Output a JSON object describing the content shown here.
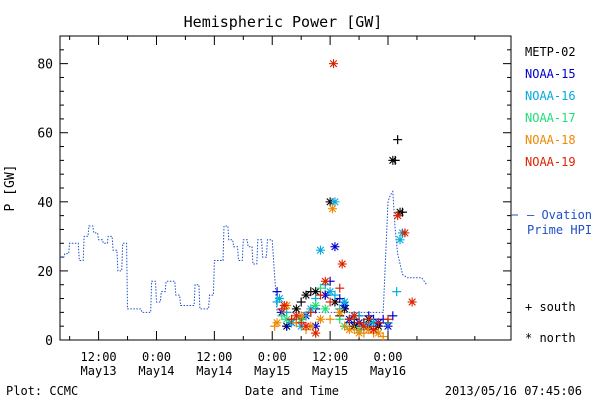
{
  "chart_data": {
    "type": "scatter",
    "title": "Hemispheric Power [GW]",
    "ylabel": "P [GW]",
    "xlabel": "Date and Time",
    "footer_left": "Plot: CCMC",
    "footer_right": "2013/05/16 07:45:06",
    "x_unit": "hours since 2013/05/13 00:00",
    "xlim": [
      4,
      97.5
    ],
    "ylim": [
      0,
      88
    ],
    "grid": false,
    "y_ticks": [
      0,
      20,
      40,
      60,
      80
    ],
    "x_ticks": [
      {
        "value": 12,
        "label": "12:00",
        "sublabel": "May13"
      },
      {
        "value": 24,
        "label": "0:00",
        "sublabel": "May14"
      },
      {
        "value": 36,
        "label": "12:00",
        "sublabel": "May14"
      },
      {
        "value": 48,
        "label": "0:00",
        "sublabel": "May15"
      },
      {
        "value": 60,
        "label": "12:00",
        "sublabel": "May15"
      },
      {
        "value": 72,
        "label": "0:00",
        "sublabel": "May16"
      }
    ],
    "legend_position": "right",
    "ovation": {
      "name": "Ovation Prime HPI",
      "name_lines": [
        "— Ovation",
        "Prime HPI"
      ],
      "color": "#1e50c8",
      "x": [
        4,
        4.8,
        5,
        5.8,
        6,
        6.8,
        7,
        7.8,
        8,
        8.8,
        9,
        9.8,
        10,
        10.8,
        11,
        11.8,
        12,
        12.8,
        13,
        13.8,
        14,
        14.8,
        15,
        15.8,
        16,
        16.8,
        17,
        17.8,
        18,
        18.8,
        19,
        19.8,
        20,
        20.8,
        21,
        21.8,
        22,
        22.8,
        23,
        23.8,
        24,
        24.8,
        25,
        25.8,
        26,
        26.8,
        27,
        27.8,
        28,
        28.8,
        29,
        29.8,
        30,
        30.8,
        31,
        31.8,
        32,
        32.8,
        33,
        33.8,
        34,
        34.8,
        35,
        35.8,
        36,
        36.8,
        37,
        37.8,
        38,
        38.8,
        39,
        39.8,
        40,
        40.8,
        41,
        41.8,
        42,
        42.8,
        43,
        43.8,
        44,
        44.8,
        45,
        45.8,
        46,
        46.8,
        47,
        48,
        49,
        50,
        51,
        52,
        53,
        54,
        55,
        56,
        57,
        58,
        59,
        60,
        61,
        62,
        63,
        64,
        65,
        66,
        67,
        68,
        69,
        70,
        71,
        72,
        72.5,
        73,
        73.5,
        74,
        74.5,
        75,
        76,
        77,
        78,
        79,
        80
      ],
      "y": [
        24,
        24,
        25,
        25,
        28,
        28,
        28,
        28,
        23,
        23,
        30,
        30,
        33,
        33,
        31,
        31,
        29,
        29,
        28,
        28,
        30,
        30,
        26,
        26,
        20,
        20,
        28,
        28,
        9,
        9,
        9,
        9,
        9,
        9,
        8,
        8,
        8,
        8,
        17,
        17,
        11,
        11,
        14,
        14,
        17,
        17,
        17,
        17,
        13,
        13,
        10,
        10,
        10,
        10,
        10,
        10,
        16,
        16,
        9,
        9,
        9,
        9,
        13,
        13,
        23,
        23,
        23,
        23,
        33,
        33,
        29,
        29,
        27,
        27,
        23,
        23,
        29,
        29,
        27,
        27,
        22,
        22,
        29,
        29,
        24,
        24,
        29,
        29,
        8,
        8,
        8,
        8,
        8,
        8,
        8,
        8,
        8,
        8,
        8,
        8,
        8,
        8,
        8,
        8,
        8,
        8,
        8,
        8,
        8,
        8,
        8,
        40,
        42,
        43,
        32,
        25,
        22,
        19,
        18,
        18,
        18,
        18,
        16
      ]
    },
    "series": [
      {
        "name": "METP-02",
        "color": "#000000",
        "south": [
          [
            52,
            6
          ],
          [
            54,
            11
          ],
          [
            56,
            14
          ],
          [
            59,
            13
          ],
          [
            62,
            7
          ],
          [
            65,
            6
          ],
          [
            67,
            5
          ],
          [
            72,
            5
          ],
          [
            73.5,
            52
          ],
          [
            74,
            58
          ],
          [
            75,
            37
          ]
        ],
        "north": [
          [
            51,
            4
          ],
          [
            53,
            9
          ],
          [
            55,
            13
          ],
          [
            57,
            14
          ],
          [
            60,
            40
          ],
          [
            61,
            11
          ],
          [
            63,
            9
          ],
          [
            65,
            4
          ],
          [
            68,
            6
          ],
          [
            70,
            4
          ],
          [
            73,
            52
          ],
          [
            74.5,
            37
          ]
        ]
      },
      {
        "name": "NOAA-15",
        "color": "#0000cc",
        "south": [
          [
            49,
            14
          ],
          [
            51,
            4
          ],
          [
            54,
            6
          ],
          [
            57,
            9
          ],
          [
            60,
            17
          ],
          [
            62,
            12
          ],
          [
            64,
            5
          ],
          [
            66,
            7
          ],
          [
            68,
            7
          ],
          [
            69,
            6
          ],
          [
            71,
            6
          ],
          [
            73,
            7
          ]
        ],
        "north": [
          [
            50,
            8
          ],
          [
            52,
            5
          ],
          [
            55,
            7
          ],
          [
            57,
            4
          ],
          [
            59,
            13
          ],
          [
            61,
            27
          ],
          [
            63,
            10
          ],
          [
            64,
            6
          ],
          [
            66,
            5
          ],
          [
            68,
            4
          ],
          [
            70,
            5
          ],
          [
            72,
            4
          ]
        ]
      },
      {
        "name": "NOAA-16",
        "color": "#00aadd",
        "south": [
          [
            49,
            11
          ],
          [
            51,
            8
          ],
          [
            53,
            6
          ],
          [
            55,
            7
          ],
          [
            57,
            12
          ],
          [
            59,
            16
          ],
          [
            61,
            13
          ],
          [
            62,
            9
          ],
          [
            64,
            6
          ],
          [
            66,
            7
          ],
          [
            68,
            5
          ],
          [
            72,
            5
          ],
          [
            73.8,
            14
          ]
        ],
        "north": [
          [
            49.5,
            12
          ],
          [
            52,
            5
          ],
          [
            54,
            4
          ],
          [
            56,
            9
          ],
          [
            58,
            26
          ],
          [
            60,
            14
          ],
          [
            61,
            40
          ],
          [
            63,
            11
          ],
          [
            65,
            7
          ],
          [
            67,
            4
          ],
          [
            69,
            5
          ],
          [
            74.5,
            29
          ],
          [
            75,
            31
          ]
        ]
      },
      {
        "name": "NOAA-17",
        "color": "#22dd77",
        "south": [
          [
            50,
            7
          ],
          [
            53,
            5
          ],
          [
            56,
            8
          ],
          [
            58,
            15
          ],
          [
            62,
            6
          ],
          [
            67,
            3
          ]
        ],
        "north": [
          [
            51,
            6
          ],
          [
            54,
            6
          ],
          [
            57,
            10
          ],
          [
            59,
            9
          ],
          [
            63,
            4
          ],
          [
            66,
            3
          ]
        ]
      },
      {
        "name": "NOAA-18",
        "color": "#ee8800",
        "south": [
          [
            48.5,
            4
          ],
          [
            50.5,
            9
          ],
          [
            53,
            5
          ],
          [
            55,
            3
          ],
          [
            57,
            2
          ],
          [
            60,
            6
          ],
          [
            63,
            4
          ],
          [
            65,
            3
          ],
          [
            67,
            2
          ],
          [
            69,
            2
          ],
          [
            71,
            1
          ]
        ],
        "north": [
          [
            49,
            5
          ],
          [
            51,
            10
          ],
          [
            54,
            7
          ],
          [
            56,
            4
          ],
          [
            58,
            6
          ],
          [
            60.5,
            38
          ],
          [
            62,
            8
          ],
          [
            64,
            3
          ],
          [
            66,
            2
          ],
          [
            68,
            3
          ],
          [
            70,
            2
          ]
        ]
      },
      {
        "name": "NOAA-19",
        "color": "#dd2200",
        "south": [
          [
            50,
            9
          ],
          [
            52,
            6
          ],
          [
            54,
            5
          ],
          [
            56,
            8
          ],
          [
            58,
            13
          ],
          [
            60,
            11
          ],
          [
            62,
            15
          ],
          [
            64,
            6
          ],
          [
            66,
            5
          ],
          [
            68,
            6
          ],
          [
            70,
            5
          ],
          [
            72,
            6
          ]
        ],
        "north": [
          [
            50.5,
            10
          ],
          [
            53,
            7
          ],
          [
            55,
            4
          ],
          [
            57,
            2
          ],
          [
            59,
            17
          ],
          [
            60.7,
            80
          ],
          [
            62.5,
            22
          ],
          [
            65,
            7
          ],
          [
            67,
            4
          ],
          [
            69,
            3
          ],
          [
            74,
            36
          ],
          [
            75.5,
            31
          ],
          [
            77,
            11
          ]
        ]
      }
    ],
    "symbol_legend": [
      {
        "symbol": "+",
        "label": "south"
      },
      {
        "symbol": "*",
        "label": "north"
      }
    ]
  }
}
